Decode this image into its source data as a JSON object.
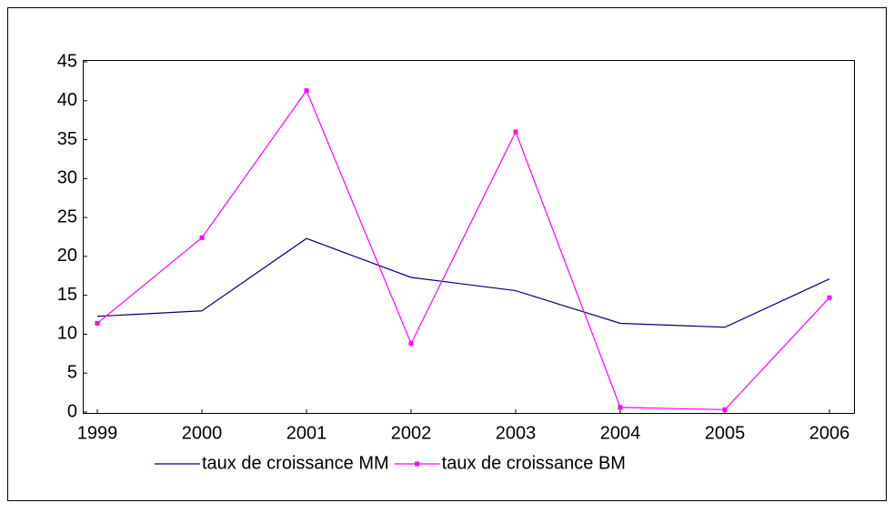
{
  "chart_data": {
    "type": "line",
    "categories": [
      "1999",
      "2000",
      "2001",
      "2002",
      "2003",
      "2004",
      "2005",
      "2006"
    ],
    "series": [
      {
        "name": "taux de croissance MM",
        "color": "#000080",
        "values": [
          12.3,
          13.0,
          22.3,
          17.3,
          15.6,
          11.4,
          10.9,
          17.1
        ]
      },
      {
        "name": "taux de croissance BM",
        "color": "#ff00ff",
        "marker": "square",
        "values": [
          11.4,
          22.4,
          41.3,
          8.8,
          36.0,
          0.6,
          0.3,
          14.7
        ]
      }
    ],
    "ylim": [
      0,
      45
    ],
    "yticks": [
      0,
      5,
      10,
      15,
      20,
      25,
      30,
      35,
      40,
      45
    ],
    "grid": false,
    "legend": "bottom"
  }
}
